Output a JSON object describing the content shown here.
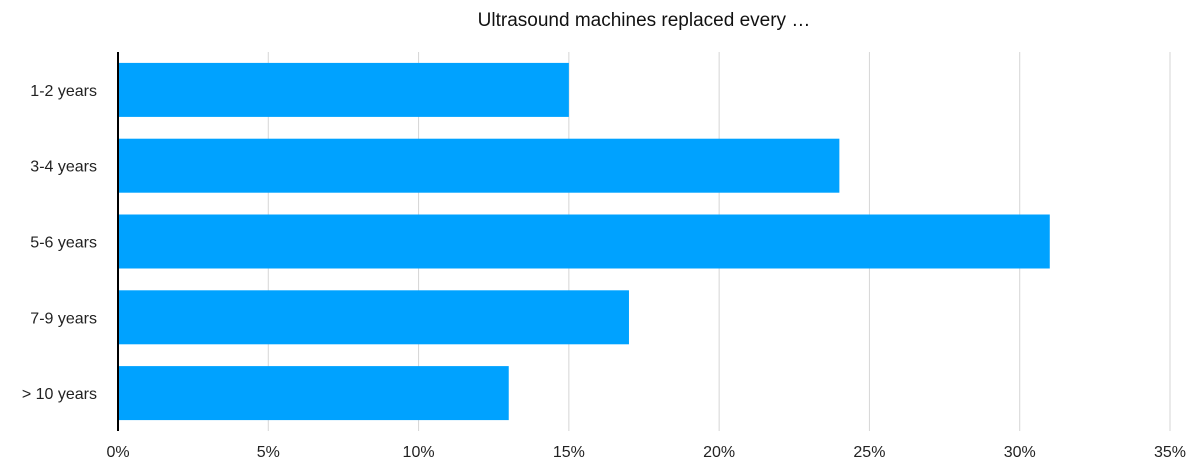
{
  "chart_data": {
    "type": "bar",
    "orientation": "horizontal",
    "title": "Ultrasound machines replaced every …",
    "xlabel": "",
    "ylabel": "",
    "categories": [
      "1-2 years",
      "3-4 years",
      "5-6 years",
      "7-9 years",
      "> 10 years"
    ],
    "values": [
      15,
      24,
      31,
      17,
      13
    ],
    "value_unit": "%",
    "xlim": [
      0,
      35
    ],
    "x_ticks": [
      0,
      5,
      10,
      15,
      20,
      25,
      30,
      35
    ],
    "x_tick_labels": [
      "0%",
      "5%",
      "10%",
      "15%",
      "20%",
      "25%",
      "30%",
      "35%"
    ],
    "grid": "vertical",
    "legend": "none",
    "colors": {
      "bar": "#00a2ff",
      "gridline": "#d6d6d6",
      "axis": "#000000"
    }
  }
}
